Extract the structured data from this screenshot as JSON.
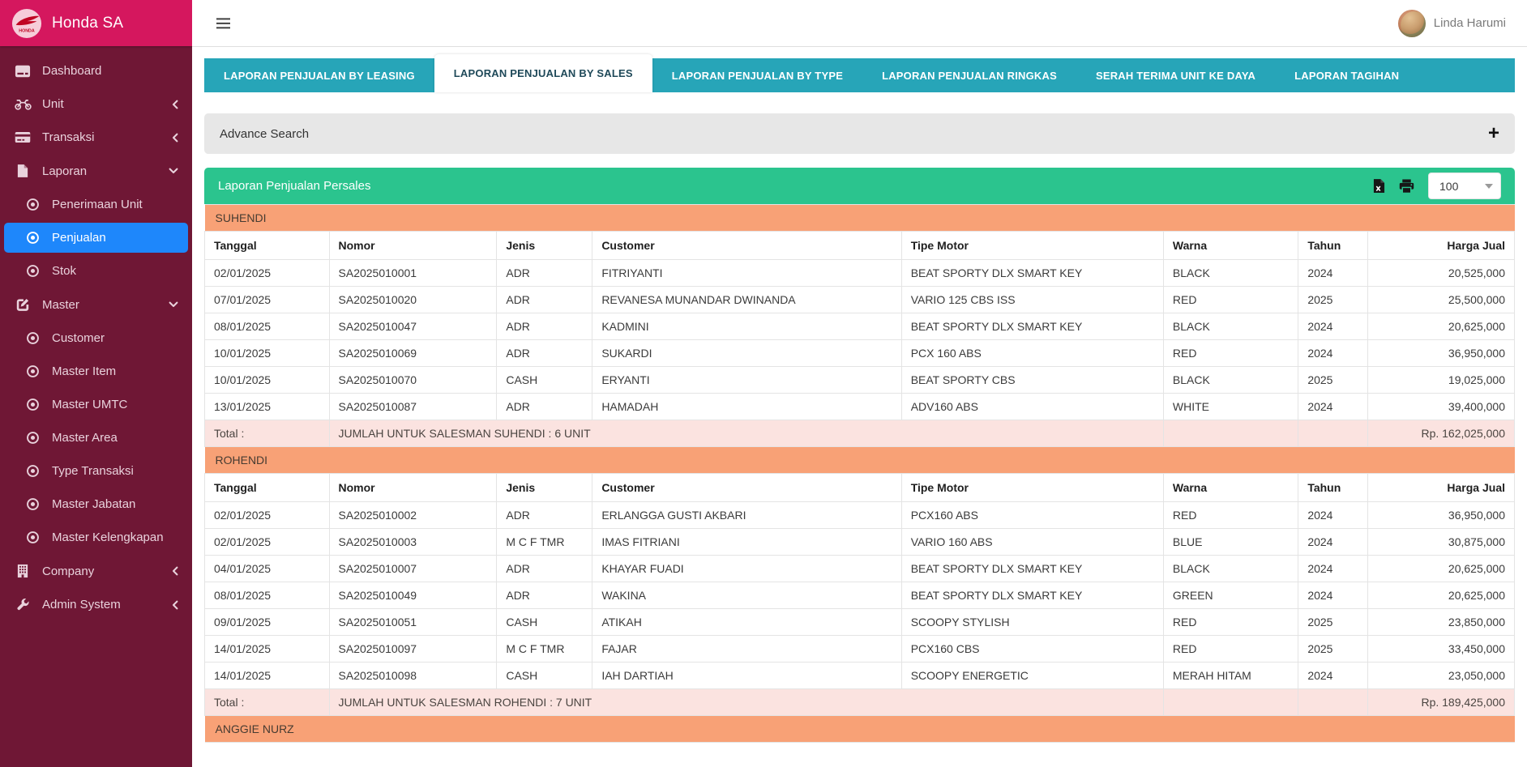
{
  "brand": {
    "title": "Honda SA"
  },
  "topbar": {
    "user_name": "Linda Harumi"
  },
  "sidebar": {
    "items": [
      {
        "label": "Dashboard",
        "icon": "dashboard-icon",
        "level": 0
      },
      {
        "label": "Unit",
        "icon": "motorcycle-icon",
        "level": 0,
        "chevron": "left"
      },
      {
        "label": "Transaksi",
        "icon": "credit-card-icon",
        "level": 0,
        "chevron": "left"
      },
      {
        "label": "Laporan",
        "icon": "file-icon",
        "level": 0,
        "chevron": "down"
      },
      {
        "label": "Penerimaan Unit",
        "icon": "dot-circle-icon",
        "level": 1
      },
      {
        "label": "Penjualan",
        "icon": "dot-circle-icon",
        "level": 1,
        "active": true
      },
      {
        "label": "Stok",
        "icon": "dot-circle-icon",
        "level": 1
      },
      {
        "label": "Master",
        "icon": "edit-icon",
        "level": 0,
        "chevron": "down"
      },
      {
        "label": "Customer",
        "icon": "dot-circle-icon",
        "level": 1
      },
      {
        "label": "Master Item",
        "icon": "dot-circle-icon",
        "level": 1
      },
      {
        "label": "Master UMTC",
        "icon": "dot-circle-icon",
        "level": 1
      },
      {
        "label": "Master Area",
        "icon": "dot-circle-icon",
        "level": 1
      },
      {
        "label": "Type Transaksi",
        "icon": "dot-circle-icon",
        "level": 1
      },
      {
        "label": "Master Jabatan",
        "icon": "dot-circle-icon",
        "level": 1
      },
      {
        "label": "Master Kelengkapan",
        "icon": "dot-circle-icon",
        "level": 1
      },
      {
        "label": "Company",
        "icon": "building-icon",
        "level": 0,
        "chevron": "left"
      },
      {
        "label": "Admin System",
        "icon": "wrench-icon",
        "level": 0,
        "chevron": "left"
      }
    ]
  },
  "tabs": {
    "items": [
      "LAPORAN PENJUALAN BY LEASING",
      "LAPORAN PENJUALAN BY SALES",
      "LAPORAN PENJUALAN BY TYPE",
      "LAPORAN PENJUALAN RINGKAS",
      "SERAH TERIMA UNIT KE DAYA",
      "LAPORAN TAGIHAN"
    ],
    "active": "LAPORAN PENJUALAN BY SALES"
  },
  "advance_search": {
    "label": "Advance Search"
  },
  "report": {
    "title": "Laporan Penjualan Persales",
    "page_size": "100",
    "total_label": "Total :",
    "columns": [
      "Tanggal",
      "Nomor",
      "Jenis",
      "Customer",
      "Tipe Motor",
      "Warna",
      "Tahun",
      "Harga Jual"
    ],
    "groups": [
      {
        "salesman": "SUHENDI",
        "rows": [
          [
            "02/01/2025",
            "SA2025010001",
            "ADR",
            "FITRIYANTI",
            "BEAT SPORTY DLX SMART KEY",
            "BLACK",
            "2024",
            "20,525,000"
          ],
          [
            "07/01/2025",
            "SA2025010020",
            "ADR",
            "REVANESA MUNANDAR DWINANDA",
            "VARIO 125 CBS ISS",
            "RED",
            "2025",
            "25,500,000"
          ],
          [
            "08/01/2025",
            "SA2025010047",
            "ADR",
            "KADMINI",
            "BEAT SPORTY DLX SMART KEY",
            "BLACK",
            "2024",
            "20,625,000"
          ],
          [
            "10/01/2025",
            "SA2025010069",
            "ADR",
            "SUKARDI",
            "PCX 160 ABS",
            "RED",
            "2024",
            "36,950,000"
          ],
          [
            "10/01/2025",
            "SA2025010070",
            "CASH",
            "ERYANTI",
            "BEAT SPORTY CBS",
            "BLACK",
            "2025",
            "19,025,000"
          ],
          [
            "13/01/2025",
            "SA2025010087",
            "ADR",
            "HAMADAH",
            "ADV160 ABS",
            "WHITE",
            "2024",
            "39,400,000"
          ]
        ],
        "total_text": "JUMLAH UNTUK SALESMAN SUHENDI : 6 UNIT",
        "total_amount": "Rp. 162,025,000"
      },
      {
        "salesman": "ROHENDI",
        "rows": [
          [
            "02/01/2025",
            "SA2025010002",
            "ADR",
            "ERLANGGA GUSTI AKBARI",
            "PCX160 ABS",
            "RED",
            "2024",
            "36,950,000"
          ],
          [
            "02/01/2025",
            "SA2025010003",
            "M C F TMR",
            "IMAS FITRIANI",
            "VARIO 160 ABS",
            "BLUE",
            "2024",
            "30,875,000"
          ],
          [
            "04/01/2025",
            "SA2025010007",
            "ADR",
            "KHAYAR FUADI",
            "BEAT SPORTY DLX SMART KEY",
            "BLACK",
            "2024",
            "20,625,000"
          ],
          [
            "08/01/2025",
            "SA2025010049",
            "ADR",
            "WAKINA",
            "BEAT SPORTY DLX SMART KEY",
            "GREEN",
            "2024",
            "20,625,000"
          ],
          [
            "09/01/2025",
            "SA2025010051",
            "CASH",
            "ATIKAH",
            "SCOOPY STYLISH",
            "RED",
            "2025",
            "23,850,000"
          ],
          [
            "14/01/2025",
            "SA2025010097",
            "M C F TMR",
            "FAJAR",
            "PCX160 CBS",
            "RED",
            "2025",
            "33,450,000"
          ],
          [
            "14/01/2025",
            "SA2025010098",
            "CASH",
            "IAH DARTIAH",
            "SCOOPY ENERGETIC",
            "MERAH HITAM",
            "2024",
            "23,050,000"
          ]
        ],
        "total_text": "JUMLAH UNTUK SALESMAN ROHENDI : 7 UNIT",
        "total_amount": "Rp. 189,425,000"
      },
      {
        "salesman": "ANGGIE NURZ",
        "rows": []
      }
    ]
  },
  "colors": {
    "brand_pink": "#d5175e",
    "sidebar_maroon": "#6f1735",
    "active_blue": "#1e87fb",
    "tab_teal": "#27a5b8",
    "panel_green": "#2bc48e",
    "group_orange": "#f8a176",
    "total_pink": "#fbe3e0"
  }
}
